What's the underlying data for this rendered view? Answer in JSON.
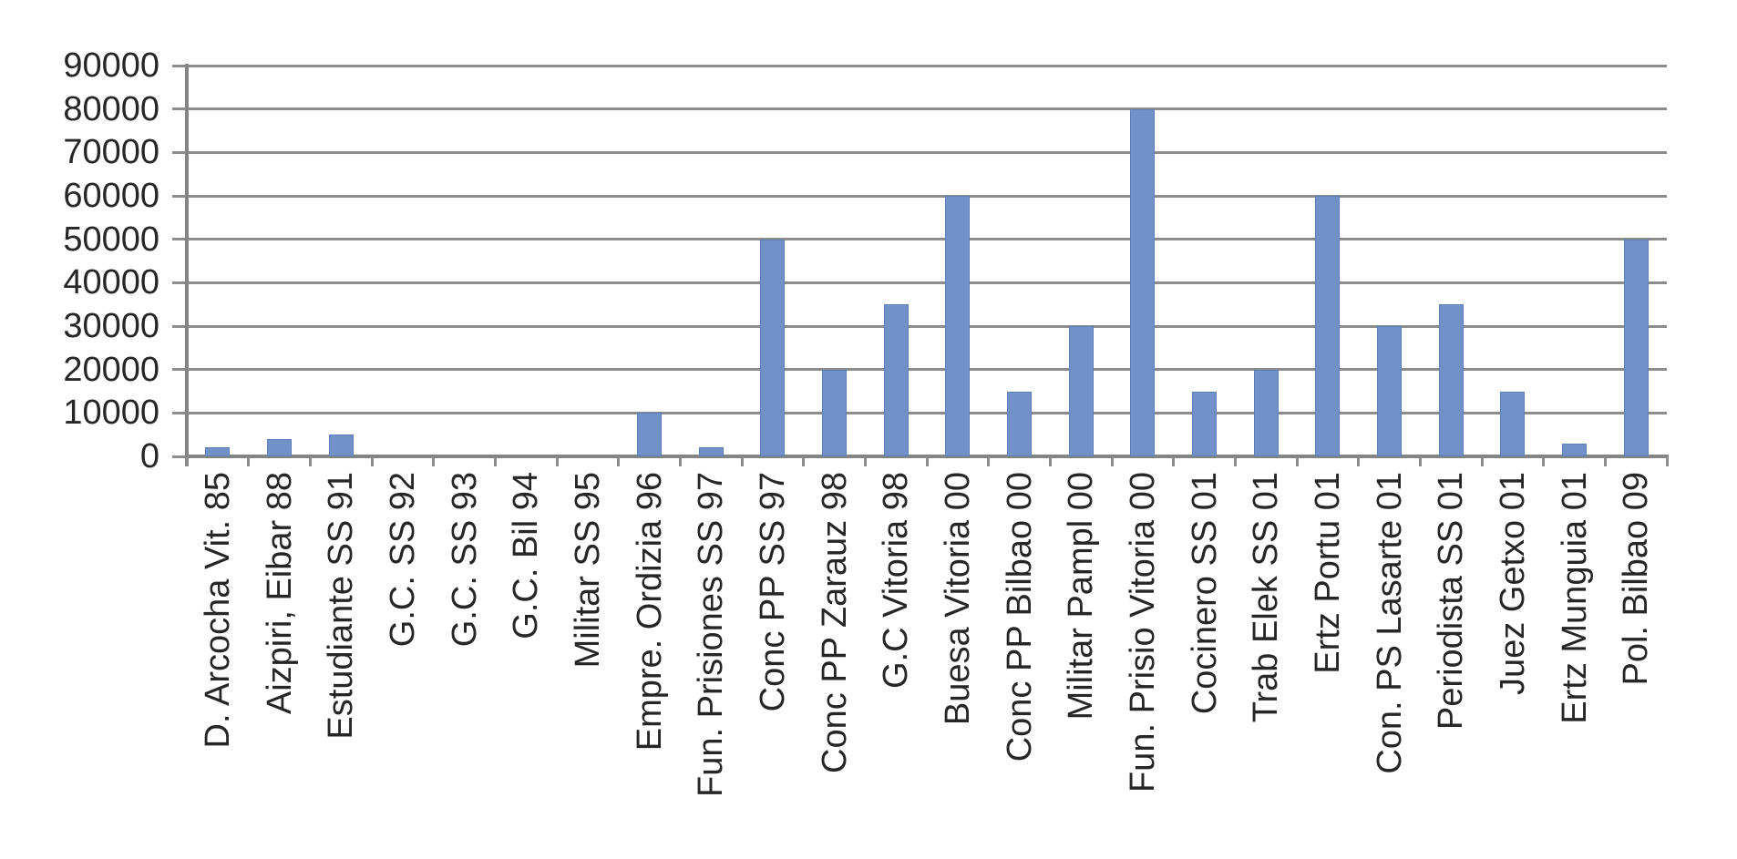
{
  "chart_data": {
    "type": "bar",
    "title": "",
    "xlabel": "",
    "ylabel": "",
    "categories": [
      "D. Arcocha Vit. 85",
      "Aizpiri, Eibar 88",
      "Estudiante SS 91",
      "G.C. SS 92",
      "G.C. SS 93",
      "G.C. Bil 94",
      "Militar SS 95",
      "Empre. Ordizia 96",
      "Fun. Prisiones SS 97",
      "Conc PP SS 97",
      "Conc PP Zarauz 98",
      "G.C Vitoria 98",
      "Buesa Vitoria 00",
      "Conc PP Bilbao 00",
      "Militar Pampl 00",
      "Fun. Prisio Vitoria 00",
      "Cocinero SS 01",
      "Trab Elek SS 01",
      "Ertz Portu 01",
      "Con. PS Lasarte 01",
      "Periodista SS 01",
      "Juez Getxo 01",
      "Ertz Munguia 01",
      "Pol. Bilbao 09"
    ],
    "values": [
      2000,
      4000,
      5000,
      0,
      0,
      0,
      0,
      10000,
      2000,
      50000,
      20000,
      35000,
      60000,
      15000,
      30000,
      80000,
      15000,
      20000,
      60000,
      30000,
      35000,
      15000,
      3000,
      50000
    ],
    "ylim": [
      0,
      90000
    ],
    "yticks": [
      0,
      10000,
      20000,
      30000,
      40000,
      50000,
      60000,
      70000,
      80000,
      90000
    ],
    "grid": true,
    "legend_position": "none",
    "bar_color": "#7191c8",
    "bar_border_color": "#5e80b9",
    "gridline_color": "#8c8c8c",
    "axis_color": "#848484",
    "text_color": "#262626"
  }
}
